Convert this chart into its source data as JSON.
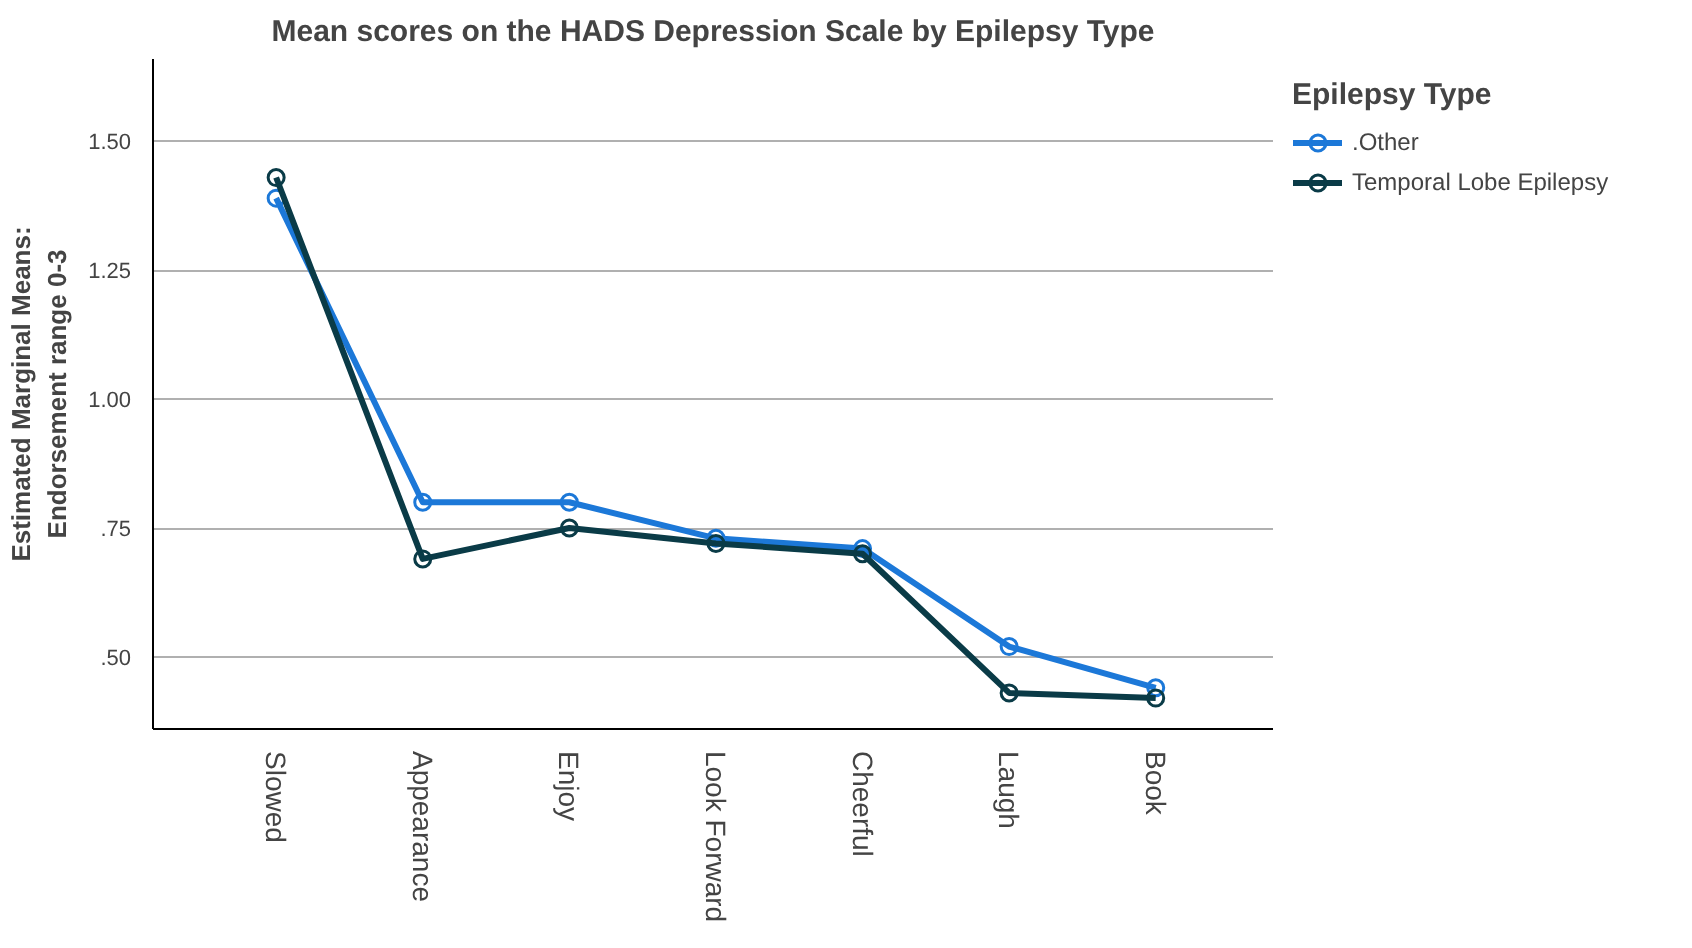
{
  "chart_data": {
    "type": "line",
    "title": "Mean scores on the HADS Depression Scale by Epilepsy Type",
    "ylabel": "Estimated Marginal Means:\nEndorsement range 0-3",
    "legend_title": "Epilepsy Type",
    "categories": [
      "Slowed",
      "Appearance",
      "Enjoy",
      "Look Forward",
      "Cheerful",
      "Laugh",
      "Book"
    ],
    "series": [
      {
        "name": ".Other",
        "color": "#1c78d8",
        "values": [
          1.39,
          0.8,
          0.8,
          0.73,
          0.71,
          0.52,
          0.44
        ]
      },
      {
        "name": "Temporal Lobe Epilepsy",
        "color": "#0a3b47",
        "values": [
          1.43,
          0.69,
          0.75,
          0.72,
          0.7,
          0.43,
          0.42
        ]
      }
    ],
    "ylim": [
      0.36,
      1.66
    ],
    "yticks": [
      {
        "value": 0.5,
        "label": ".50"
      },
      {
        "value": 0.75,
        "label": ".75"
      },
      {
        "value": 1.0,
        "label": "1.00"
      },
      {
        "value": 1.25,
        "label": "1.25"
      },
      {
        "value": 1.5,
        "label": "1.50"
      }
    ],
    "grid": "y",
    "legend": "top right",
    "marker": "circle",
    "line_style": "solid"
  }
}
